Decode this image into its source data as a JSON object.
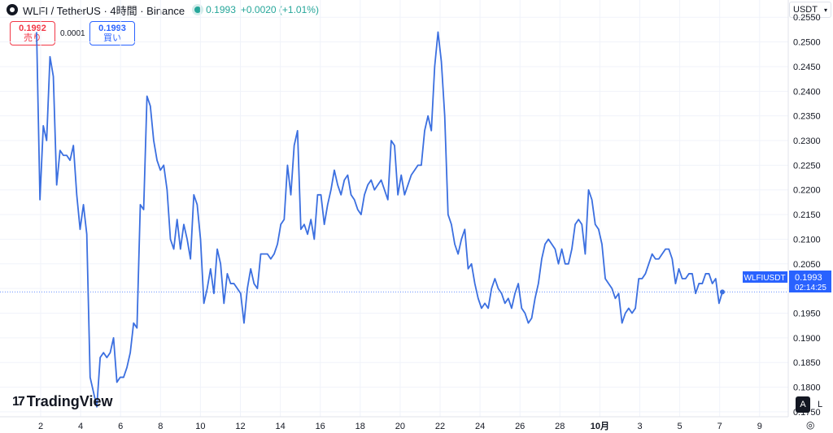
{
  "header": {
    "title": "WLFI / TetherUS · 4時間 · Binance",
    "price": "0.1993",
    "change": "+0.0020 (+1.01%)"
  },
  "trade": {
    "sell_price": "0.1992",
    "sell_label": "売り",
    "spread": "0.0001",
    "buy_price": "0.1993",
    "buy_label": "買い"
  },
  "currency": "USDT",
  "brand": "TradingView",
  "scale_buttons": {
    "auto": "A",
    "log": "L"
  },
  "last_price_label": {
    "symbol": "WLFIUSDT",
    "price": "0.1993",
    "countdown": "02:14:25"
  },
  "colors": {
    "line": "#3b6fe0",
    "price_tag": "#2962ff",
    "sell": "#f23645",
    "buy": "#2962ff",
    "up": "#26a69a"
  },
  "chart_data": {
    "type": "line",
    "ylim": [
      0.174,
      0.2585
    ],
    "yticks": [
      0.255,
      0.25,
      0.245,
      0.24,
      0.235,
      0.23,
      0.225,
      0.22,
      0.215,
      0.21,
      0.205,
      0.2,
      0.195,
      0.19,
      0.185,
      0.18,
      0.175
    ],
    "xticks": [
      "2",
      "4",
      "6",
      "8",
      "10",
      "12",
      "14",
      "16",
      "18",
      "20",
      "22",
      "24",
      "26",
      "28",
      "10月",
      "3",
      "5",
      "7",
      "9"
    ],
    "x_index_range": [
      0,
      200
    ],
    "values": [
      0.252,
      0.218,
      0.233,
      0.23,
      0.247,
      0.243,
      0.221,
      0.228,
      0.227,
      0.227,
      0.226,
      0.229,
      0.219,
      0.212,
      0.217,
      0.211,
      0.182,
      0.179,
      0.176,
      0.186,
      0.187,
      0.186,
      0.187,
      0.19,
      0.181,
      0.182,
      0.182,
      0.184,
      0.187,
      0.193,
      0.192,
      0.217,
      0.216,
      0.239,
      0.237,
      0.23,
      0.226,
      0.224,
      0.225,
      0.22,
      0.21,
      0.208,
      0.214,
      0.208,
      0.213,
      0.21,
      0.206,
      0.219,
      0.217,
      0.21,
      0.197,
      0.2,
      0.204,
      0.199,
      0.208,
      0.205,
      0.197,
      0.203,
      0.201,
      0.201,
      0.2,
      0.199,
      0.193,
      0.2,
      0.204,
      0.201,
      0.2,
      0.207,
      0.207,
      0.207,
      0.206,
      0.207,
      0.209,
      0.213,
      0.214,
      0.225,
      0.219,
      0.229,
      0.232,
      0.212,
      0.213,
      0.211,
      0.214,
      0.21,
      0.219,
      0.219,
      0.213,
      0.217,
      0.22,
      0.224,
      0.221,
      0.219,
      0.222,
      0.223,
      0.219,
      0.218,
      0.216,
      0.215,
      0.219,
      0.221,
      0.222,
      0.22,
      0.221,
      0.222,
      0.22,
      0.218,
      0.23,
      0.229,
      0.219,
      0.223,
      0.219,
      0.221,
      0.223,
      0.224,
      0.225,
      0.225,
      0.232,
      0.235,
      0.232,
      0.245,
      0.252,
      0.246,
      0.235,
      0.215,
      0.213,
      0.209,
      0.207,
      0.21,
      0.212,
      0.204,
      0.205,
      0.201,
      0.198,
      0.196,
      0.197,
      0.196,
      0.2,
      0.202,
      0.2,
      0.199,
      0.197,
      0.198,
      0.196,
      0.199,
      0.201,
      0.196,
      0.195,
      0.193,
      0.194,
      0.198,
      0.201,
      0.206,
      0.209,
      0.21,
      0.209,
      0.208,
      0.205,
      0.208,
      0.205,
      0.205,
      0.208,
      0.213,
      0.214,
      0.213,
      0.207,
      0.22,
      0.218,
      0.213,
      0.212,
      0.209,
      0.202,
      0.201,
      0.2,
      0.198,
      0.199,
      0.193,
      0.195,
      0.196,
      0.195,
      0.196,
      0.202,
      0.202,
      0.203,
      0.205,
      0.207,
      0.206,
      0.206,
      0.207,
      0.208,
      0.208,
      0.206,
      0.201,
      0.204,
      0.202,
      0.202,
      0.203,
      0.203,
      0.199,
      0.201,
      0.201,
      0.203,
      0.203,
      0.201,
      0.202,
      0.197,
      0.1993
    ]
  }
}
